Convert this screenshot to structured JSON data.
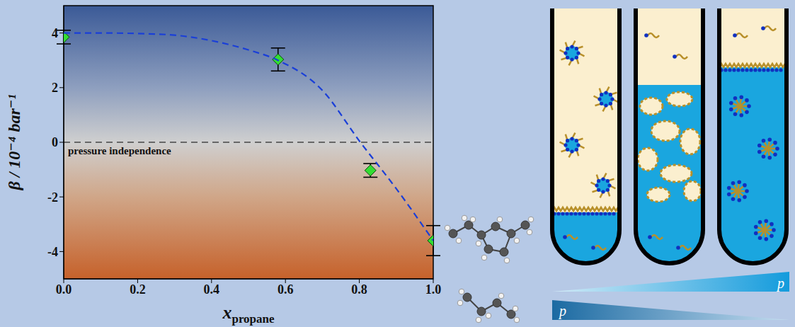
{
  "chart_data": {
    "type": "scatter",
    "xlabel": "x",
    "xlabel_subscript": "propane",
    "ylabel": "β / 10⁻⁴ bar⁻¹",
    "xlim": [
      0,
      1
    ],
    "ylim": [
      -5,
      5
    ],
    "xticks": [
      {
        "value": 0,
        "label": "0.0"
      },
      {
        "value": 0.2,
        "label": "0.2"
      },
      {
        "value": 0.4,
        "label": "0.4"
      },
      {
        "value": 0.6,
        "label": "0.6"
      },
      {
        "value": 0.8,
        "label": "0.8"
      },
      {
        "value": 1,
        "label": "1.0"
      }
    ],
    "yticks": [
      -4,
      -2,
      0,
      2,
      4
    ],
    "series": [
      {
        "type": "scatter",
        "color": "#33dd33",
        "marker": "diamond",
        "x": [
          0.0,
          0.58,
          0.83,
          1.0
        ],
        "values": [
          3.85,
          3.03,
          -1.03,
          -3.6
        ],
        "error": [
          0.25,
          0.42,
          0.25,
          0.55
        ]
      },
      {
        "type": "line",
        "color": "#1a3fd8",
        "line_style": "dashed",
        "x": [
          0.0,
          0.1,
          0.2,
          0.3,
          0.4,
          0.5,
          0.58,
          0.7,
          0.8,
          0.9,
          1.0
        ],
        "values": [
          4.0,
          4.0,
          3.98,
          3.92,
          3.72,
          3.38,
          3.0,
          1.9,
          0.05,
          -1.7,
          -3.6
        ]
      }
    ],
    "reference_line": {
      "value": 0,
      "label": "pressure independence",
      "color": "#000000",
      "line_style": "dashed"
    }
  },
  "diagram": {
    "pressure_labels": [
      "p",
      "p"
    ]
  }
}
